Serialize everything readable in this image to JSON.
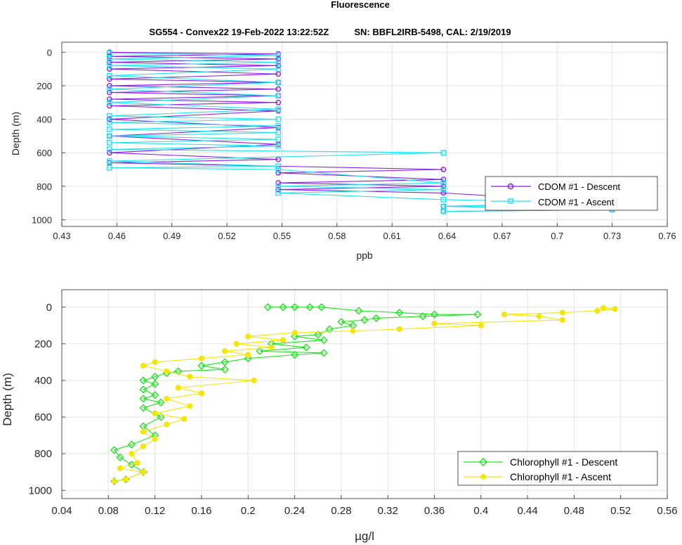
{
  "figure": {
    "title": "Fluorescence",
    "subtitle": "SG554 - Convex22 19-Feb-2022 13:22:52Z          SN: BBFL2IRB-5498, CAL: 2/19/2019"
  },
  "colors": {
    "cdom_descent": "#8a1ee6",
    "cdom_ascent": "#1ee6ee",
    "chl_descent": "#1ee61e",
    "chl_ascent": "#f3e60a",
    "grid": "#e3e3e3",
    "axis": "#262626"
  },
  "chart_data": [
    {
      "type": "line",
      "xlabel": "ppb",
      "ylabel": "Depth (m)",
      "xlim": [
        0.43,
        0.76
      ],
      "ylim": [
        1040,
        -60
      ],
      "y_reversed": true,
      "xticks": [
        "0.43",
        "0.46",
        "0.49",
        "0.52",
        "0.55",
        "0.58",
        "0.61",
        "0.64",
        "0.67",
        "0.7",
        "0.73",
        "0.76"
      ],
      "yticks": [
        "0",
        "200",
        "400",
        "600",
        "800",
        "1000"
      ],
      "grid": true,
      "legend_position": "bottom-right",
      "series": [
        {
          "name": "CDOM #1 - Descent",
          "marker": "circle",
          "depths": [
            0,
            10,
            25,
            40,
            60,
            80,
            100,
            130,
            160,
            180,
            200,
            220,
            240,
            260,
            280,
            300,
            320,
            350,
            400,
            450,
            500,
            550,
            600,
            640,
            660,
            700,
            720,
            760,
            780,
            800,
            820,
            840,
            900,
            920,
            940,
            950
          ],
          "values": [
            0.456,
            0.548,
            0.456,
            0.548,
            0.456,
            0.548,
            0.456,
            0.548,
            0.456,
            0.548,
            0.456,
            0.548,
            0.456,
            0.548,
            0.456,
            0.548,
            0.456,
            0.548,
            0.456,
            0.548,
            0.456,
            0.548,
            0.456,
            0.548,
            0.456,
            0.638,
            0.548,
            0.638,
            0.548,
            0.638,
            0.548,
            0.638,
            0.73,
            0.638,
            0.73,
            0.638
          ]
        },
        {
          "name": "CDOM #1 - Ascent",
          "marker": "square",
          "depths": [
            950,
            940,
            920,
            900,
            880,
            840,
            820,
            800,
            780,
            700,
            690,
            680,
            650,
            600,
            580,
            560,
            540,
            520,
            500,
            480,
            460,
            440,
            420,
            400,
            380,
            340,
            300,
            260,
            220,
            180,
            140,
            100,
            80,
            60,
            40,
            20,
            5
          ],
          "values": [
            0.638,
            0.73,
            0.638,
            0.73,
            0.638,
            0.548,
            0.638,
            0.548,
            0.638,
            0.548,
            0.456,
            0.548,
            0.456,
            0.638,
            0.456,
            0.548,
            0.456,
            0.548,
            0.456,
            0.548,
            0.456,
            0.548,
            0.456,
            0.548,
            0.456,
            0.548,
            0.456,
            0.548,
            0.456,
            0.548,
            0.456,
            0.548,
            0.456,
            0.548,
            0.456,
            0.548,
            0.456
          ]
        }
      ]
    },
    {
      "type": "line",
      "xlabel": "µg/l",
      "ylabel": "Depth (m)",
      "xlim": [
        0.04,
        0.56
      ],
      "ylim": [
        1045,
        -95
      ],
      "y_reversed": true,
      "xticks": [
        "0.04",
        "0.08",
        "0.12",
        "0.16",
        "0.2",
        "0.24",
        "0.28",
        "0.32",
        "0.36",
        "0.4",
        "0.44",
        "0.48",
        "0.52",
        "0.56"
      ],
      "yticks": [
        "0",
        "200",
        "400",
        "600",
        "800",
        "1000"
      ],
      "grid": true,
      "legend_position": "bottom-right",
      "series": [
        {
          "name": "Chlorophyll #1 - Descent",
          "marker": "diamond",
          "depths": [
            0,
            0,
            0,
            0,
            0,
            20,
            30,
            40,
            40,
            50,
            60,
            70,
            80,
            100,
            120,
            150,
            160,
            180,
            200,
            220,
            240,
            250,
            260,
            280,
            300,
            320,
            340,
            350,
            360,
            380,
            400,
            420,
            450,
            480,
            500,
            520,
            550,
            600,
            650,
            700,
            750,
            780,
            820,
            860,
            900,
            940,
            950
          ],
          "values": [
            0.217,
            0.23,
            0.24,
            0.253,
            0.263,
            0.295,
            0.33,
            0.36,
            0.397,
            0.35,
            0.31,
            0.3,
            0.28,
            0.29,
            0.27,
            0.26,
            0.24,
            0.265,
            0.22,
            0.25,
            0.21,
            0.265,
            0.24,
            0.2,
            0.18,
            0.16,
            0.18,
            0.14,
            0.13,
            0.12,
            0.11,
            0.12,
            0.11,
            0.12,
            0.11,
            0.125,
            0.11,
            0.125,
            0.11,
            0.12,
            0.1,
            0.085,
            0.09,
            0.1,
            0.11,
            0.095,
            0.085
          ]
        },
        {
          "name": "Chlorophyll #1 - Ascent",
          "marker": "circle",
          "depths": [
            950,
            940,
            900,
            880,
            850,
            800,
            760,
            720,
            680,
            640,
            610,
            580,
            540,
            500,
            470,
            440,
            400,
            380,
            350,
            320,
            300,
            280,
            260,
            240,
            220,
            200,
            180,
            160,
            140,
            130,
            120,
            100,
            90,
            70,
            50,
            40,
            30,
            20,
            10,
            5
          ],
          "values": [
            0.085,
            0.095,
            0.11,
            0.09,
            0.105,
            0.1,
            0.11,
            0.12,
            0.11,
            0.13,
            0.145,
            0.12,
            0.15,
            0.13,
            0.16,
            0.14,
            0.205,
            0.15,
            0.13,
            0.11,
            0.12,
            0.16,
            0.2,
            0.18,
            0.22,
            0.19,
            0.23,
            0.2,
            0.24,
            0.29,
            0.33,
            0.4,
            0.36,
            0.47,
            0.45,
            0.42,
            0.47,
            0.5,
            0.515,
            0.505
          ]
        }
      ]
    }
  ]
}
